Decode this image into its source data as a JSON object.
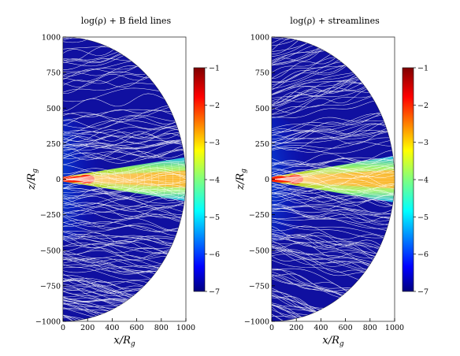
{
  "chart_data": [
    {
      "type": "heatmap",
      "title": "log(ρ) + B field lines",
      "xlabel": "x/R",
      "xlabel_sub": "g",
      "ylabel": "z/R",
      "ylabel_sub": "g",
      "xlim": [
        0,
        1000
      ],
      "ylim": [
        -1000,
        1000
      ],
      "x_ticks": [
        0,
        200,
        400,
        600,
        800,
        1000
      ],
      "y_ticks": [
        1000,
        750,
        500,
        250,
        0,
        -250,
        -500,
        -750,
        -1000
      ],
      "colorbar": {
        "min": -7,
        "max": -1,
        "ticks": [
          -1,
          -2,
          -3,
          -4,
          -5,
          -6,
          -7
        ]
      },
      "overlay": "field-lines"
    },
    {
      "type": "heatmap",
      "title": "log(ρ) + streamlines",
      "xlabel": "x/R",
      "xlabel_sub": "g",
      "ylabel": "z/R",
      "ylabel_sub": "g",
      "xlim": [
        0,
        1000
      ],
      "ylim": [
        -1000,
        1000
      ],
      "x_ticks": [
        0,
        200,
        400,
        600,
        800,
        1000
      ],
      "y_ticks": [
        1000,
        750,
        500,
        250,
        0,
        -250,
        -500,
        -750,
        -1000
      ],
      "colorbar": {
        "min": -7,
        "max": -1,
        "ticks": [
          -1,
          -2,
          -3,
          -4,
          -5,
          -6,
          -7
        ]
      },
      "overlay": "streamlines"
    }
  ],
  "colors": {
    "jet": [
      "#00007f",
      "#0000ff",
      "#007fff",
      "#00ffff",
      "#7fff7f",
      "#ffff00",
      "#ff7f00",
      "#ff0000",
      "#7f0000"
    ],
    "background_outer": "#1010a0",
    "line_color": "#ffffff"
  }
}
